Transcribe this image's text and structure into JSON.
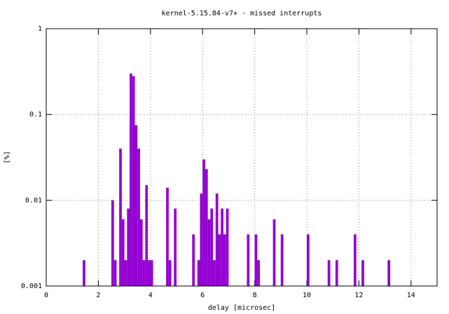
{
  "chart_data": {
    "type": "bar",
    "title": "kernel-5.15.84-v7+ - missed interrupts",
    "xlabel": "delay [microsec]",
    "ylabel": "[%]",
    "x": [
      1.45,
      2.55,
      2.65,
      2.85,
      2.95,
      3.05,
      3.15,
      3.25,
      3.35,
      3.45,
      3.55,
      3.65,
      3.75,
      3.85,
      3.95,
      4.05,
      4.65,
      4.75,
      4.95,
      5.65,
      5.85,
      5.95,
      6.05,
      6.15,
      6.25,
      6.35,
      6.45,
      6.55,
      6.65,
      6.75,
      6.85,
      6.95,
      7.75,
      8.05,
      8.15,
      8.75,
      9.05,
      10.05,
      10.85,
      11.15,
      11.85,
      12.15,
      13.15
    ],
    "values": [
      0.002,
      0.01,
      0.002,
      0.04,
      0.006,
      0.002,
      0.008,
      0.3,
      0.28,
      0.075,
      0.04,
      0.006,
      0.002,
      0.015,
      0.002,
      0.002,
      0.014,
      0.002,
      0.008,
      0.004,
      0.002,
      0.012,
      0.03,
      0.023,
      0.006,
      0.008,
      0.002,
      0.012,
      0.004,
      0.008,
      0.004,
      0.008,
      0.004,
      0.004,
      0.002,
      0.006,
      0.004,
      0.004,
      0.002,
      0.002,
      0.004,
      0.002,
      0.002
    ],
    "color": "#9400d3",
    "xlim": [
      0,
      15
    ],
    "xticks": [
      0,
      2,
      4,
      6,
      8,
      10,
      12,
      14
    ],
    "ylim": [
      0.001,
      1
    ],
    "yticks": [
      0.001,
      0.01,
      0.1,
      1
    ],
    "log_y": true,
    "grid": true
  }
}
